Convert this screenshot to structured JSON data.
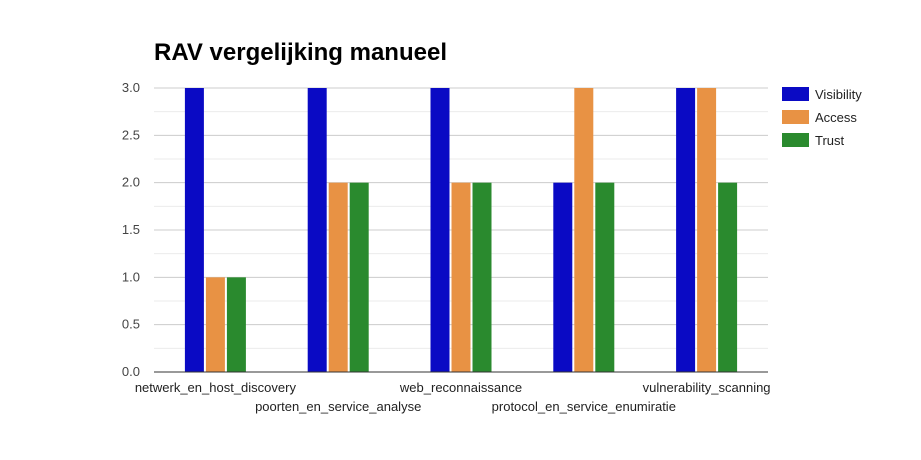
{
  "chart_data": {
    "type": "bar",
    "title": "RAV vergelijking manueel",
    "xlabel": "",
    "ylabel": "",
    "categories": [
      "netwerk_en_host_discovery",
      "poorten_en_service_analyse",
      "web_reconnaissance",
      "protocol_en_service_enumiratie",
      "vulnerability_scanning"
    ],
    "series": [
      {
        "name": "Visibility",
        "color": "#0a0ac4",
        "values": [
          3,
          3,
          3,
          2,
          3
        ]
      },
      {
        "name": "Access",
        "color": "#e89244",
        "values": [
          1,
          2,
          2,
          3,
          3
        ]
      },
      {
        "name": "Trust",
        "color": "#2a8a2e",
        "values": [
          1,
          2,
          2,
          2,
          2
        ]
      }
    ],
    "ylim": [
      0,
      3
    ],
    "yticks": [
      "0.0",
      "0.5",
      "1.0",
      "1.5",
      "2.0",
      "2.5",
      "3.0"
    ],
    "grid": true,
    "legend_position": "right"
  }
}
